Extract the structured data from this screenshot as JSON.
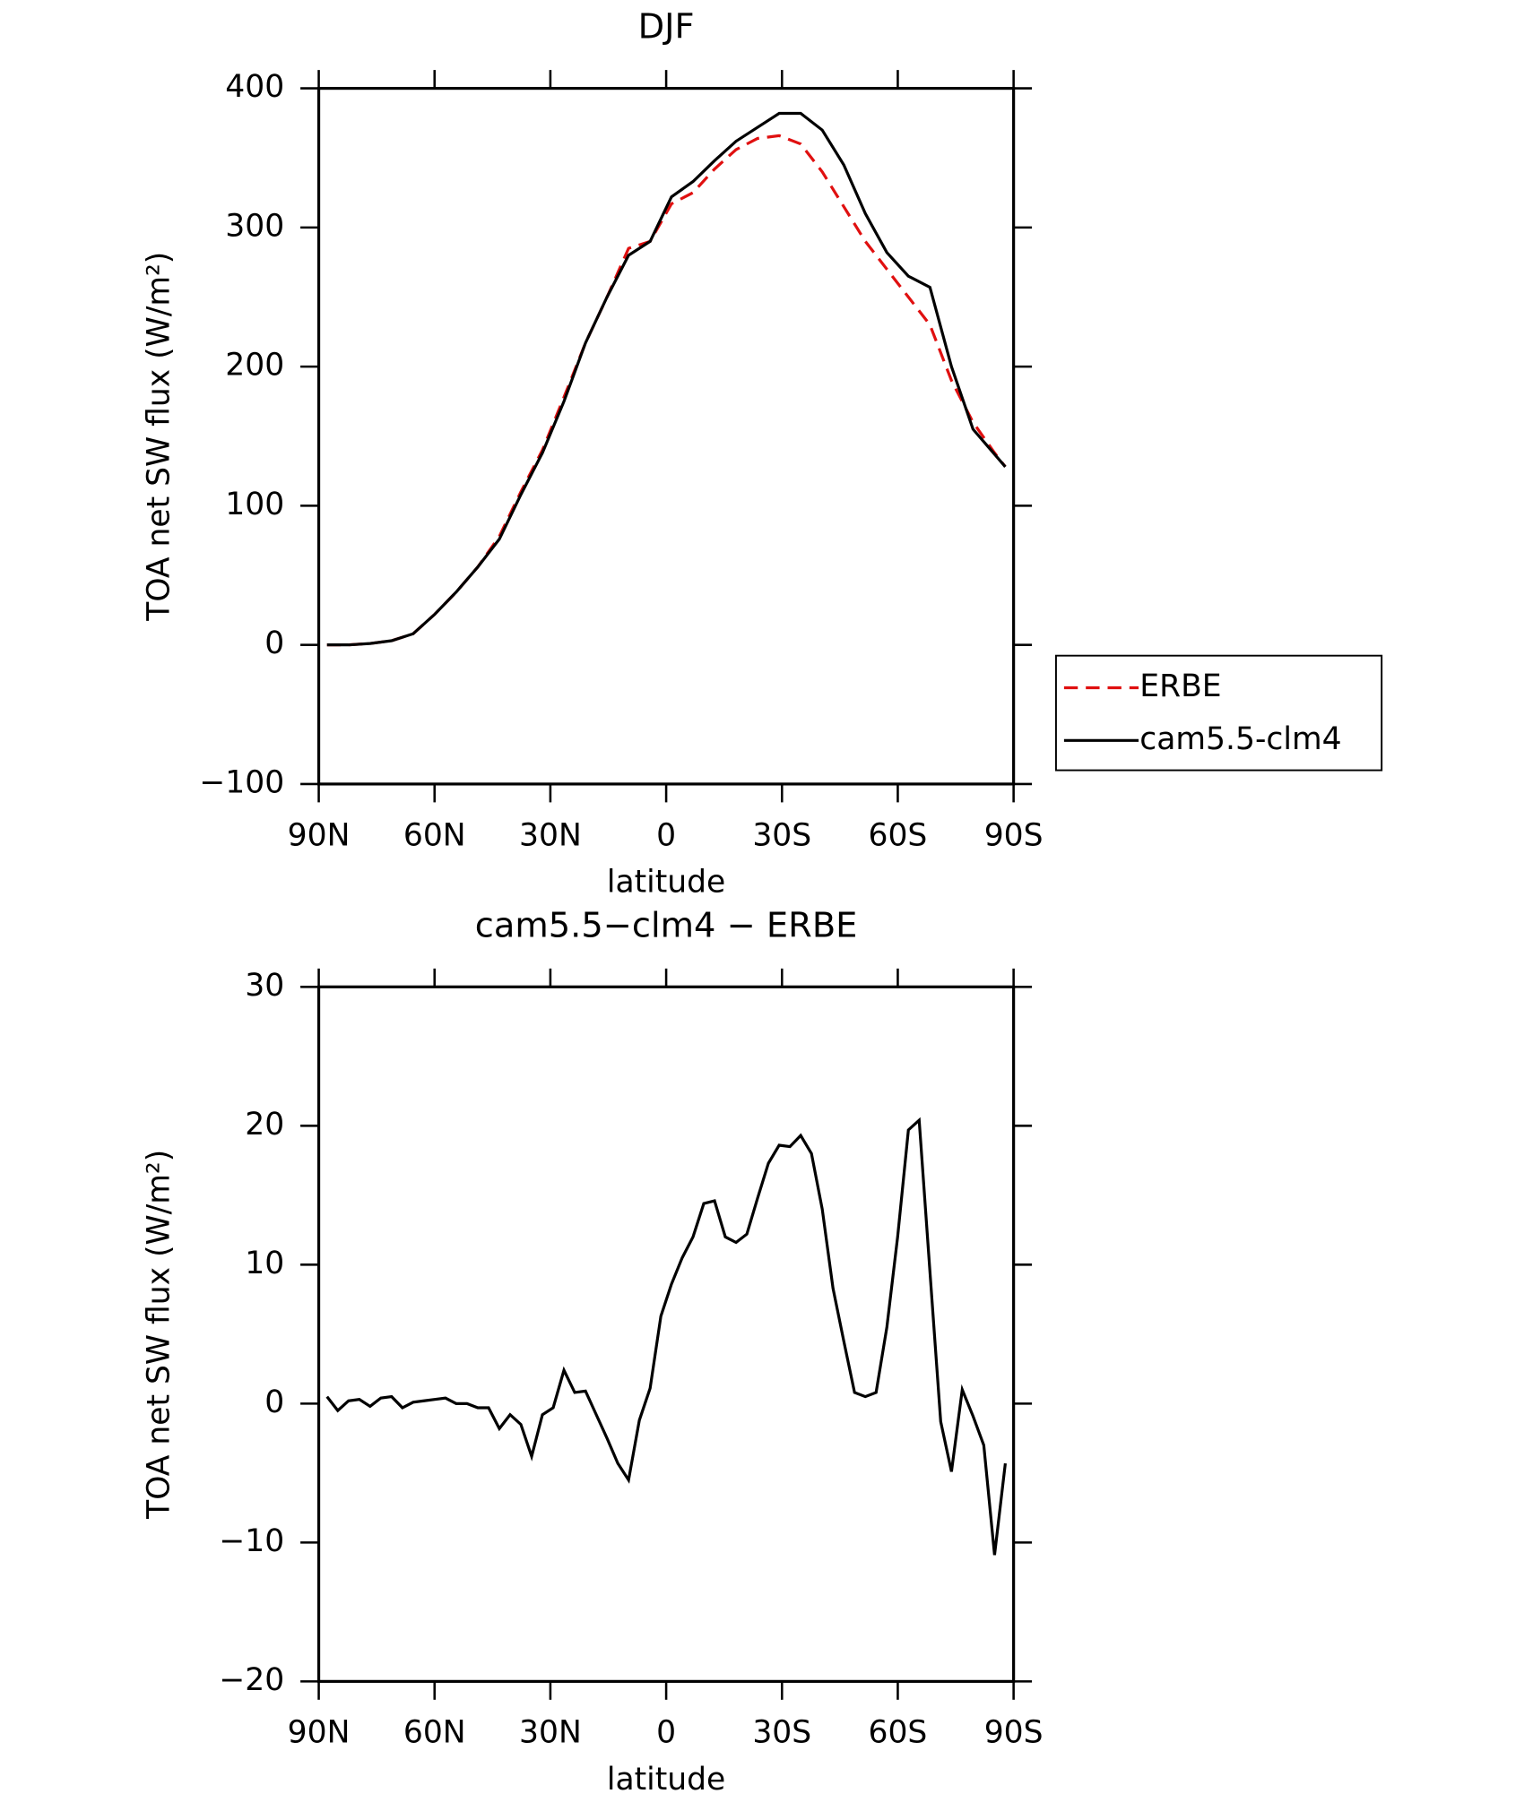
{
  "chart_data": [
    {
      "type": "line",
      "title": "DJF",
      "xlabel": "latitude",
      "ylabel": "TOA net SW flux (W/m²)",
      "x": [
        87.86,
        82.28,
        76.7,
        71.12,
        65.54,
        59.96,
        54.38,
        48.8,
        43.22,
        37.64,
        32.06,
        26.48,
        20.9,
        15.32,
        9.74,
        4.16,
        -1.37,
        -6.95,
        -12.53,
        -18.11,
        -23.69,
        -29.27,
        -34.85,
        -40.43,
        -46.01,
        -51.59,
        -57.17,
        -62.75,
        -68.33,
        -73.91,
        -79.49,
        -85.07,
        -87.86
      ],
      "series": [
        {
          "name": "ERBE",
          "color": "#e01010",
          "dash": true,
          "values": [
            0,
            0,
            1,
            3,
            8,
            22,
            38,
            56,
            78,
            110,
            140,
            178,
            217,
            250,
            285,
            290,
            317,
            325,
            342,
            356,
            364,
            366,
            360,
            340,
            315,
            290,
            270,
            250,
            230,
            190,
            160,
            138,
            128
          ]
        },
        {
          "name": "cam5.5-clm4",
          "color": "#000000",
          "dash": false,
          "values": [
            0,
            0,
            1,
            3,
            8,
            22,
            38,
            56,
            76,
            108,
            138,
            175,
            217,
            250,
            280,
            290,
            322,
            333,
            348,
            362,
            372,
            382,
            382,
            370,
            345,
            310,
            282,
            265,
            257,
            200,
            155,
            137,
            128
          ]
        }
      ],
      "xlim": [
        90,
        -90
      ],
      "xticks": [
        {
          "value": 90,
          "label": "90N"
        },
        {
          "value": 60,
          "label": "60N"
        },
        {
          "value": 30,
          "label": "30N"
        },
        0,
        {
          "value": -30,
          "label": "30S"
        },
        {
          "value": -60,
          "label": "60S"
        },
        {
          "value": -90,
          "label": "90S"
        }
      ],
      "ylim": [
        -100,
        400
      ],
      "yticks": [
        {
          "value": -100,
          "label": "−100"
        },
        0,
        100,
        200,
        300,
        400
      ],
      "legend": "right"
    },
    {
      "type": "line",
      "title": "cam5.5−clm4 − ERBE",
      "xlabel": "latitude",
      "ylabel": "TOA net SW flux (W/m²)",
      "x": [
        87.86,
        85.07,
        82.28,
        79.49,
        76.7,
        73.91,
        71.12,
        68.33,
        65.54,
        62.75,
        59.96,
        57.17,
        54.38,
        51.59,
        48.8,
        46.01,
        43.22,
        40.43,
        37.64,
        34.85,
        32.06,
        29.27,
        26.48,
        23.69,
        20.9,
        18.11,
        15.32,
        12.53,
        9.74,
        6.95,
        4.16,
        1.37,
        -1.37,
        -4.16,
        -6.95,
        -9.74,
        -12.53,
        -15.32,
        -18.11,
        -20.9,
        -23.69,
        -26.48,
        -29.27,
        -32.06,
        -34.85,
        -37.64,
        -40.43,
        -43.22,
        -46.01,
        -48.8,
        -51.59,
        -54.38,
        -57.17,
        -59.96,
        -62.75,
        -65.54,
        -68.33,
        -71.12,
        -73.91,
        -76.7,
        -79.49,
        -82.28,
        -85.07,
        -87.86
      ],
      "series": [
        {
          "color": "#000000",
          "dash": false,
          "values": [
            0.5,
            -0.5,
            0.2,
            0.3,
            -0.2,
            0.4,
            0.5,
            -0.3,
            0.1,
            0.2,
            0.3,
            0.4,
            0,
            0,
            -0.3,
            -0.3,
            -1.8,
            -0.8,
            -1.5,
            -3.8,
            -0.8,
            -0.3,
            2.4,
            0.8,
            0.9,
            -0.8,
            -2.5,
            -4.3,
            -5.5,
            -1.2,
            1.1,
            6.3,
            8.6,
            10.5,
            12.0,
            14.4,
            14.6,
            12.0,
            11.6,
            12.2,
            14.8,
            17.3,
            18.6,
            18.5,
            19.3,
            18.0,
            14.0,
            8.3,
            4.5,
            0.8,
            0.5,
            0.8,
            5.5,
            12.0,
            19.7,
            20.4,
            9.5,
            -1.3,
            -4.9,
            1.0,
            -0.9,
            -3.0,
            -10.9,
            -4.3
          ]
        }
      ],
      "xlim": [
        90,
        -90
      ],
      "xticks": [
        {
          "value": 90,
          "label": "90N"
        },
        {
          "value": 60,
          "label": "60N"
        },
        {
          "value": 30,
          "label": "30N"
        },
        0,
        {
          "value": -30,
          "label": "30S"
        },
        {
          "value": -60,
          "label": "60S"
        },
        {
          "value": -90,
          "label": "90S"
        }
      ],
      "ylim": [
        -20,
        30
      ],
      "yticks": [
        {
          "value": -20,
          "label": "−20"
        },
        {
          "value": -10,
          "label": "−10"
        },
        0,
        10,
        20,
        30
      ]
    }
  ]
}
